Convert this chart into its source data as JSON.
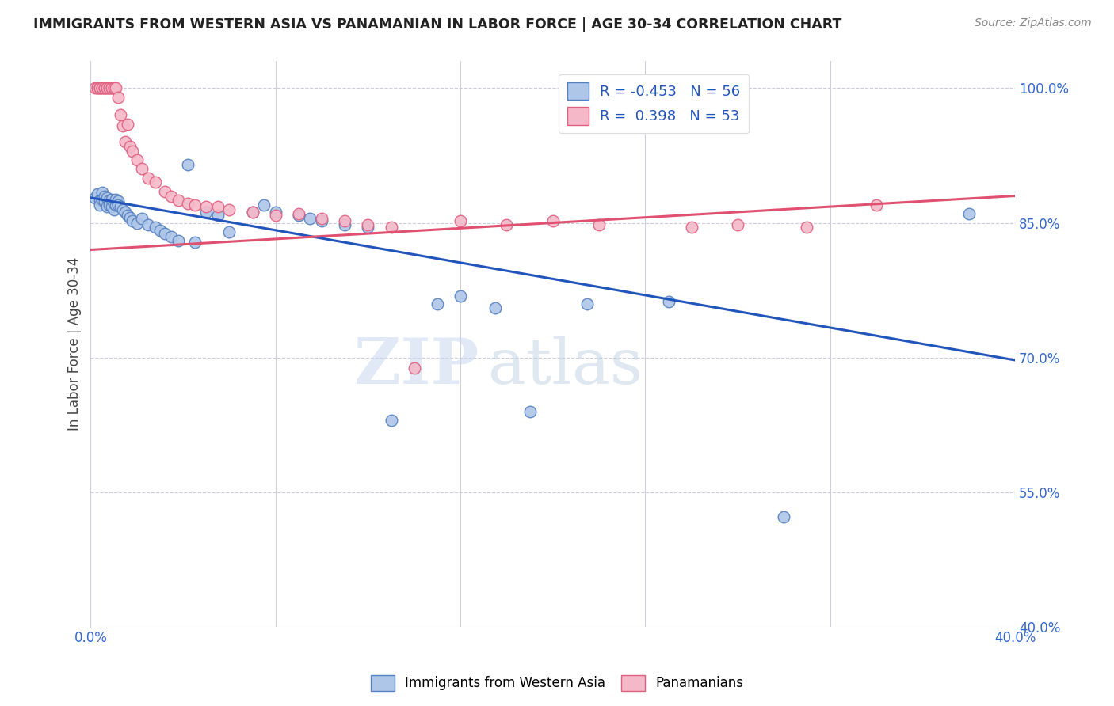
{
  "title": "IMMIGRANTS FROM WESTERN ASIA VS PANAMANIAN IN LABOR FORCE | AGE 30-34 CORRELATION CHART",
  "source": "Source: ZipAtlas.com",
  "ylabel_label": "In Labor Force | Age 30-34",
  "xlim": [
    0.0,
    0.4
  ],
  "ylim": [
    0.4,
    1.03
  ],
  "xticks": [
    0.0,
    0.08,
    0.16,
    0.24,
    0.32,
    0.4
  ],
  "xtick_labels": [
    "0.0%",
    "",
    "",
    "",
    "",
    "40.0%"
  ],
  "ytick_labels": [
    "100.0%",
    "85.0%",
    "70.0%",
    "55.0%",
    "40.0%"
  ],
  "yticks": [
    1.0,
    0.85,
    0.7,
    0.55,
    0.4
  ],
  "blue_color": "#aec6e8",
  "pink_color": "#f4b8c8",
  "blue_edge_color": "#5580c0",
  "pink_edge_color": "#e06080",
  "blue_line_color": "#2255bb",
  "pink_line_color": "#e05070",
  "R_blue": -0.453,
  "N_blue": 56,
  "R_pink": 0.398,
  "N_pink": 53,
  "legend_label_blue": "Immigrants from Western Asia",
  "legend_label_pink": "Panamanians",
  "watermark_zip": "ZIP",
  "watermark_atlas": "atlas",
  "blue_scatter_x": [
    0.002,
    0.003,
    0.004,
    0.004,
    0.005,
    0.005,
    0.006,
    0.006,
    0.007,
    0.007,
    0.008,
    0.008,
    0.009,
    0.009,
    0.01,
    0.01,
    0.011,
    0.011,
    0.012,
    0.012,
    0.013,
    0.014,
    0.015,
    0.016,
    0.017,
    0.018,
    0.02,
    0.022,
    0.025,
    0.028,
    0.03,
    0.032,
    0.035,
    0.038,
    0.042,
    0.045,
    0.05,
    0.055,
    0.06,
    0.07,
    0.075,
    0.08,
    0.09,
    0.095,
    0.1,
    0.11,
    0.12,
    0.13,
    0.15,
    0.16,
    0.175,
    0.19,
    0.215,
    0.25,
    0.3,
    0.38
  ],
  "blue_scatter_y": [
    0.878,
    0.882,
    0.875,
    0.87,
    0.884,
    0.876,
    0.88,
    0.873,
    0.878,
    0.868,
    0.875,
    0.87,
    0.868,
    0.876,
    0.865,
    0.872,
    0.87,
    0.876,
    0.874,
    0.87,
    0.868,
    0.865,
    0.862,
    0.858,
    0.856,
    0.852,
    0.85,
    0.855,
    0.848,
    0.845,
    0.842,
    0.838,
    0.835,
    0.83,
    0.915,
    0.828,
    0.862,
    0.858,
    0.84,
    0.862,
    0.87,
    0.862,
    0.858,
    0.855,
    0.852,
    0.848,
    0.845,
    0.63,
    0.76,
    0.768,
    0.755,
    0.64,
    0.76,
    0.762,
    0.522,
    0.86
  ],
  "pink_scatter_x": [
    0.002,
    0.003,
    0.003,
    0.004,
    0.004,
    0.005,
    0.005,
    0.006,
    0.006,
    0.007,
    0.007,
    0.008,
    0.008,
    0.009,
    0.009,
    0.01,
    0.01,
    0.011,
    0.012,
    0.013,
    0.014,
    0.015,
    0.016,
    0.017,
    0.018,
    0.02,
    0.022,
    0.025,
    0.028,
    0.032,
    0.035,
    0.038,
    0.042,
    0.045,
    0.05,
    0.055,
    0.06,
    0.07,
    0.08,
    0.09,
    0.1,
    0.11,
    0.12,
    0.13,
    0.14,
    0.16,
    0.18,
    0.2,
    0.22,
    0.26,
    0.28,
    0.31,
    0.34
  ],
  "pink_scatter_y": [
    1.0,
    1.0,
    1.0,
    1.0,
    1.0,
    1.0,
    1.0,
    1.0,
    1.0,
    1.0,
    1.0,
    1.0,
    1.0,
    1.0,
    1.0,
    1.0,
    1.0,
    1.0,
    0.99,
    0.97,
    0.958,
    0.94,
    0.96,
    0.935,
    0.93,
    0.92,
    0.91,
    0.9,
    0.895,
    0.885,
    0.88,
    0.875,
    0.872,
    0.87,
    0.868,
    0.868,
    0.865,
    0.862,
    0.858,
    0.86,
    0.855,
    0.852,
    0.848,
    0.845,
    0.688,
    0.852,
    0.848,
    0.852,
    0.848,
    0.845,
    0.848,
    0.845,
    0.87
  ],
  "blue_trend_x": [
    0.0,
    0.4
  ],
  "blue_trend_y": [
    0.878,
    0.697
  ],
  "pink_trend_x": [
    0.0,
    0.4
  ],
  "pink_trend_y": [
    0.82,
    0.88
  ]
}
